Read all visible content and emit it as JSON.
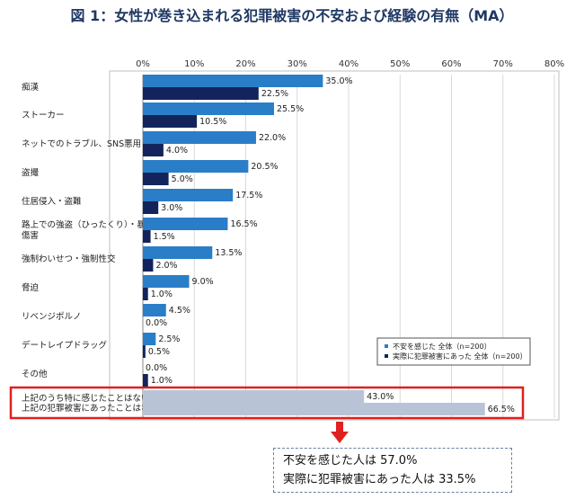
{
  "title": "図 1：女性が巻き込まれる犯罪被害の不安および経験の有無（MA）",
  "chart_data": {
    "type": "bar",
    "orientation": "horizontal",
    "x_ticks": [
      "0%",
      "10%",
      "20%",
      "30%",
      "40%",
      "50%",
      "60%",
      "70%",
      "80%"
    ],
    "xlim": [
      0,
      80
    ],
    "grid": true,
    "legend_position": "bottom-right",
    "categories": [
      [
        "痴漢"
      ],
      [
        "ストーカー"
      ],
      [
        "ネットでのトラブル、SNS悪用"
      ],
      [
        "盗撮"
      ],
      [
        "住居侵入・盗難"
      ],
      [
        "路上での強盗（ひったくり）・暴行・",
        "傷害"
      ],
      [
        "強制わいせつ・強制性交"
      ],
      [
        "脅迫"
      ],
      [
        "リベンジポルノ"
      ],
      [
        "デートレイプドラッグ"
      ],
      [
        "その他"
      ],
      [
        "上記のうち特に感じたことはない／",
        "上記の犯罪被害にあったことはない"
      ]
    ],
    "series": [
      {
        "name": "不安を感じた 全体（n=200）",
        "color": "#2a7ec8",
        "values": [
          35.0,
          25.5,
          22.0,
          20.5,
          17.5,
          16.5,
          13.5,
          9.0,
          4.5,
          2.5,
          0.0,
          43.0
        ],
        "labels": [
          "35.0%",
          "25.5%",
          "22.0%",
          "20.5%",
          "17.5%",
          "16.5%",
          "13.5%",
          "9.0%",
          "4.5%",
          "2.5%",
          "0.0%",
          "43.0%"
        ]
      },
      {
        "name": "実際に犯罪被害にあった 全体（n=200）",
        "color": "#13245c",
        "values": [
          22.5,
          10.5,
          4.0,
          5.0,
          3.0,
          1.5,
          2.0,
          1.0,
          0.0,
          0.5,
          1.0,
          66.5
        ],
        "labels": [
          "22.5%",
          "10.5%",
          "4.0%",
          "5.0%",
          "3.0%",
          "1.5%",
          "2.0%",
          "1.0%",
          "0.0%",
          "0.5%",
          "1.0%",
          "66.5%"
        ]
      }
    ],
    "highlight_color": "#e02020",
    "none_bar_color": "#b8c4d6"
  },
  "summary": {
    "line1": "不安を感じた人は 57.0%",
    "line2": "実際に犯罪被害にあった人は 33.5%"
  }
}
